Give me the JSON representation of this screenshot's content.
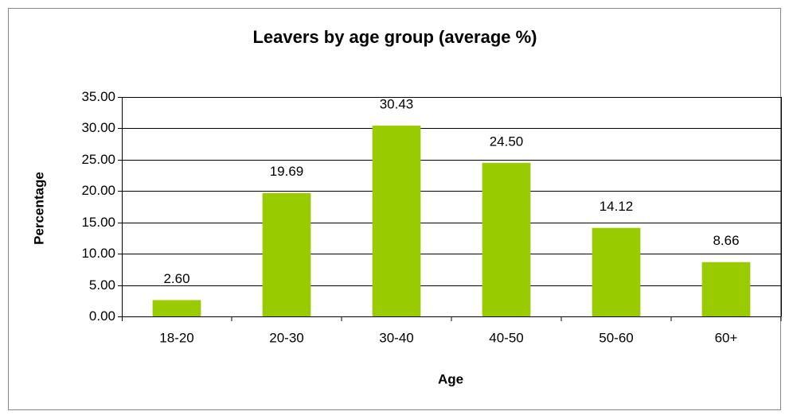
{
  "chart_data": {
    "type": "bar",
    "title": "Leavers by age group (average %)",
    "x_label": "Age",
    "y_label": "Percentage",
    "categories": [
      "18-20",
      "20-30",
      "30-40",
      "40-50",
      "50-60",
      "60+"
    ],
    "values": [
      2.6,
      19.69,
      30.43,
      24.5,
      14.12,
      8.66
    ],
    "value_labels": [
      "2.60",
      "19.69",
      "30.43",
      "24.50",
      "14.12",
      "8.66"
    ],
    "color": "#99cc00",
    "ylim": [
      0,
      35
    ],
    "yticks": [
      {
        "value": 0,
        "label": "0.00"
      },
      {
        "value": 5,
        "label": "5.00"
      },
      {
        "value": 10,
        "label": "10.00"
      },
      {
        "value": 15,
        "label": "15.00"
      },
      {
        "value": 20,
        "label": "20.00"
      },
      {
        "value": 25,
        "label": "25.00"
      },
      {
        "value": 30,
        "label": "30.00"
      },
      {
        "value": 35,
        "label": "35.00"
      }
    ],
    "grid": true
  }
}
